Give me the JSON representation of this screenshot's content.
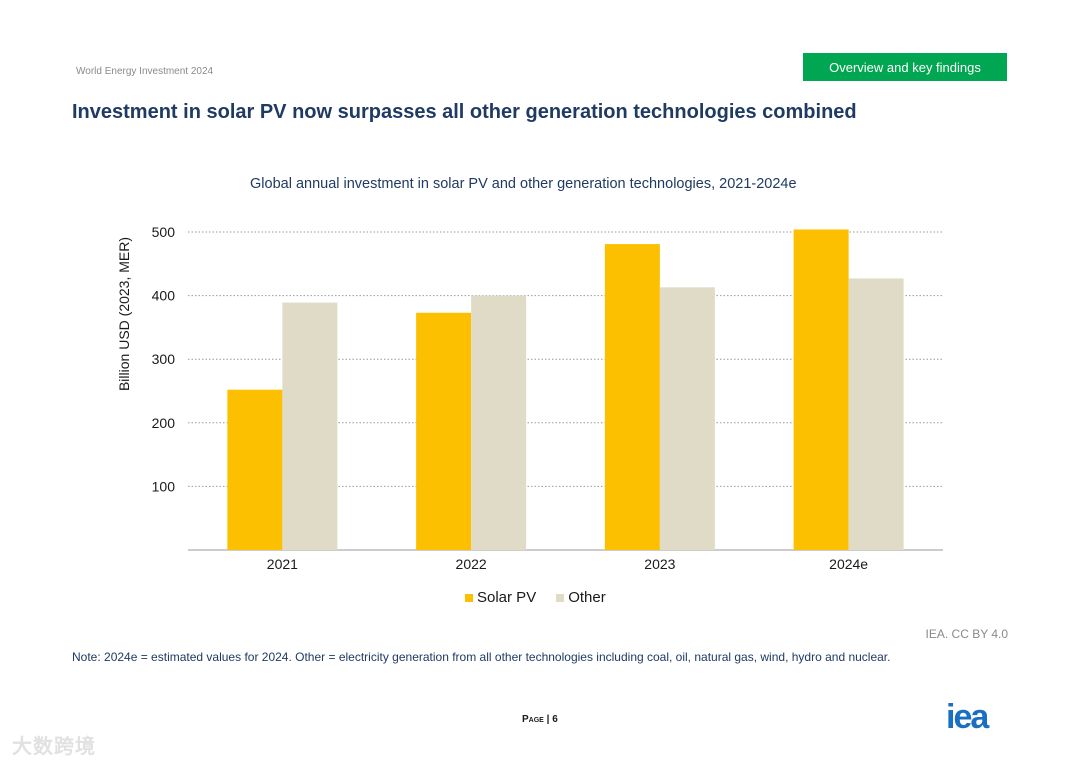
{
  "header": {
    "publication": "World Energy Investment 2024",
    "section": "Overview and key findings"
  },
  "page_title": "Investment in solar PV now surpasses all other generation technologies combined",
  "colors": {
    "solar": "#fcc000",
    "other": "#dfdbc7",
    "accent": "#00a651",
    "title": "#1f3a63",
    "brand": "#1b6fc2"
  },
  "chart_data": {
    "type": "bar",
    "title": "Global annual investment in solar PV and other generation technologies, 2021-2024e",
    "xlabel": "",
    "ylabel": "Billion USD (2023, MER)",
    "categories": [
      "2021",
      "2022",
      "2023",
      "2024e"
    ],
    "series": [
      {
        "name": "Solar PV",
        "values": [
          252,
          373,
          481,
          504
        ]
      },
      {
        "name": "Other",
        "values": [
          389,
          400,
          413,
          427
        ]
      }
    ],
    "ylim": [
      0,
      500
    ],
    "yticks": [
      100,
      200,
      300,
      400,
      500
    ],
    "grid": true,
    "legend": "bottom-center"
  },
  "footer": {
    "credit": "IEA. CC BY 4.0",
    "note": "Note: 2024e = estimated values for 2024. Other = electricity generation from all other technologies including coal, oil, natural gas, wind, hydro and nuclear.",
    "page": "Page | 6",
    "logo_text": "iea",
    "watermark": "大数跨境"
  }
}
